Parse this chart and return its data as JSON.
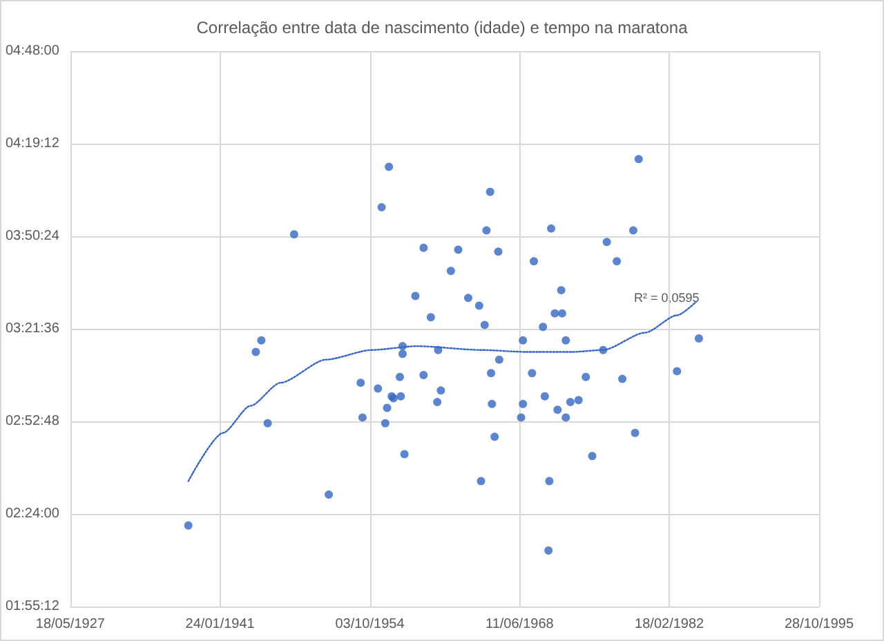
{
  "chart_data": {
    "type": "scatter",
    "title": "Correlação entre data de nascimento (idade) e tempo na maratona",
    "xlim": [
      "1927-05-18",
      "1995-10-28"
    ],
    "xticks": [
      {
        "value": "1927-05-18",
        "label": "18/05/1927"
      },
      {
        "value": "1941-01-24",
        "label": "24/01/1941"
      },
      {
        "value": "1954-10-03",
        "label": "03/10/1954"
      },
      {
        "value": "1968-06-11",
        "label": "11/06/1968"
      },
      {
        "value": "1982-02-18",
        "label": "18/02/1982"
      },
      {
        "value": "1995-10-28",
        "label": "28/10/1995"
      }
    ],
    "ylim": [
      1.92,
      4.8
    ],
    "yticks": [
      {
        "value": 1.92,
        "label": "01:55:12"
      },
      {
        "value": 2.4,
        "label": "02:24:00"
      },
      {
        "value": 2.88,
        "label": "02:52:48"
      },
      {
        "value": 3.36,
        "label": "03:21:36"
      },
      {
        "value": 3.84,
        "label": "03:50:24"
      },
      {
        "value": 4.32,
        "label": "04:19:12"
      },
      {
        "value": 4.8,
        "label": "04:48:00"
      }
    ],
    "grid": true,
    "series": [
      {
        "color": "#3366c4",
        "marker": "circle",
        "x": [
          "1938-03",
          "1944-05",
          "1944-11",
          "1945-06",
          "1947-11",
          "1951-01",
          "1953-12",
          "1954-02",
          "1955-07",
          "1955-11",
          "1956-03",
          "1956-05",
          "1956-07",
          "1956-10",
          "1956-12",
          "1957-07",
          "1957-08",
          "1957-10",
          "1957-10",
          "1957-12",
          "1958-12",
          "1959-09",
          "1959-09",
          "1960-05",
          "1960-12",
          "1961-01",
          "1961-04",
          "1962-03",
          "1962-11",
          "1963-10",
          "1964-10",
          "1964-12",
          "1965-04",
          "1965-06",
          "1965-10",
          "1965-11",
          "1965-12",
          "1966-03",
          "1966-07",
          "1966-08",
          "1968-08",
          "1968-10",
          "1968-10",
          "1969-08",
          "1969-10",
          "1970-08",
          "1970-10",
          "1971-02",
          "1971-03",
          "1971-05",
          "1971-09",
          "1971-12",
          "1972-04",
          "1972-05",
          "1972-09",
          "1972-09",
          "1973-02",
          "1973-11",
          "1974-07",
          "1975-02",
          "1976-02",
          "1976-06",
          "1977-05",
          "1977-11",
          "1978-11",
          "1979-01",
          "1979-05",
          "1982-11",
          "1984-11"
        ],
        "values": [
          2.34,
          3.24,
          3.3,
          2.87,
          3.85,
          2.5,
          3.08,
          2.9,
          3.05,
          3.99,
          2.87,
          2.95,
          4.2,
          3.01,
          3.0,
          3.11,
          3.01,
          3.23,
          3.27,
          2.71,
          3.53,
          3.78,
          3.12,
          3.42,
          2.98,
          3.25,
          3.04,
          3.66,
          3.77,
          3.52,
          3.48,
          2.57,
          3.38,
          3.87,
          4.07,
          3.13,
          2.97,
          2.8,
          3.76,
          3.2,
          2.9,
          3.3,
          2.97,
          3.13,
          3.71,
          3.37,
          3.01,
          2.21,
          2.57,
          3.88,
          3.44,
          2.94,
          3.56,
          3.44,
          3.3,
          2.9,
          2.98,
          2.99,
          3.11,
          2.7,
          3.25,
          3.81,
          3.71,
          3.1,
          3.87,
          2.82,
          4.24,
          3.14,
          3.31
        ]
      },
      {
        "type": "line",
        "color": "#3366c4",
        "marker": "none",
        "line_style": "dotted",
        "x": [
          "1938-03",
          "1941-05",
          "1943-11",
          "1946-08",
          "1950-10",
          "1954-12",
          "1959-02",
          "1964-12",
          "1969-02",
          "1973-04",
          "1976-02",
          "1979-12",
          "1982-11",
          "1984-08"
        ],
        "values": [
          2.57,
          2.82,
          2.96,
          3.08,
          3.2,
          3.25,
          3.27,
          3.25,
          3.24,
          3.24,
          3.25,
          3.34,
          3.43,
          3.5
        ]
      }
    ],
    "annotations": [
      "R² = 0,0595"
    ]
  }
}
